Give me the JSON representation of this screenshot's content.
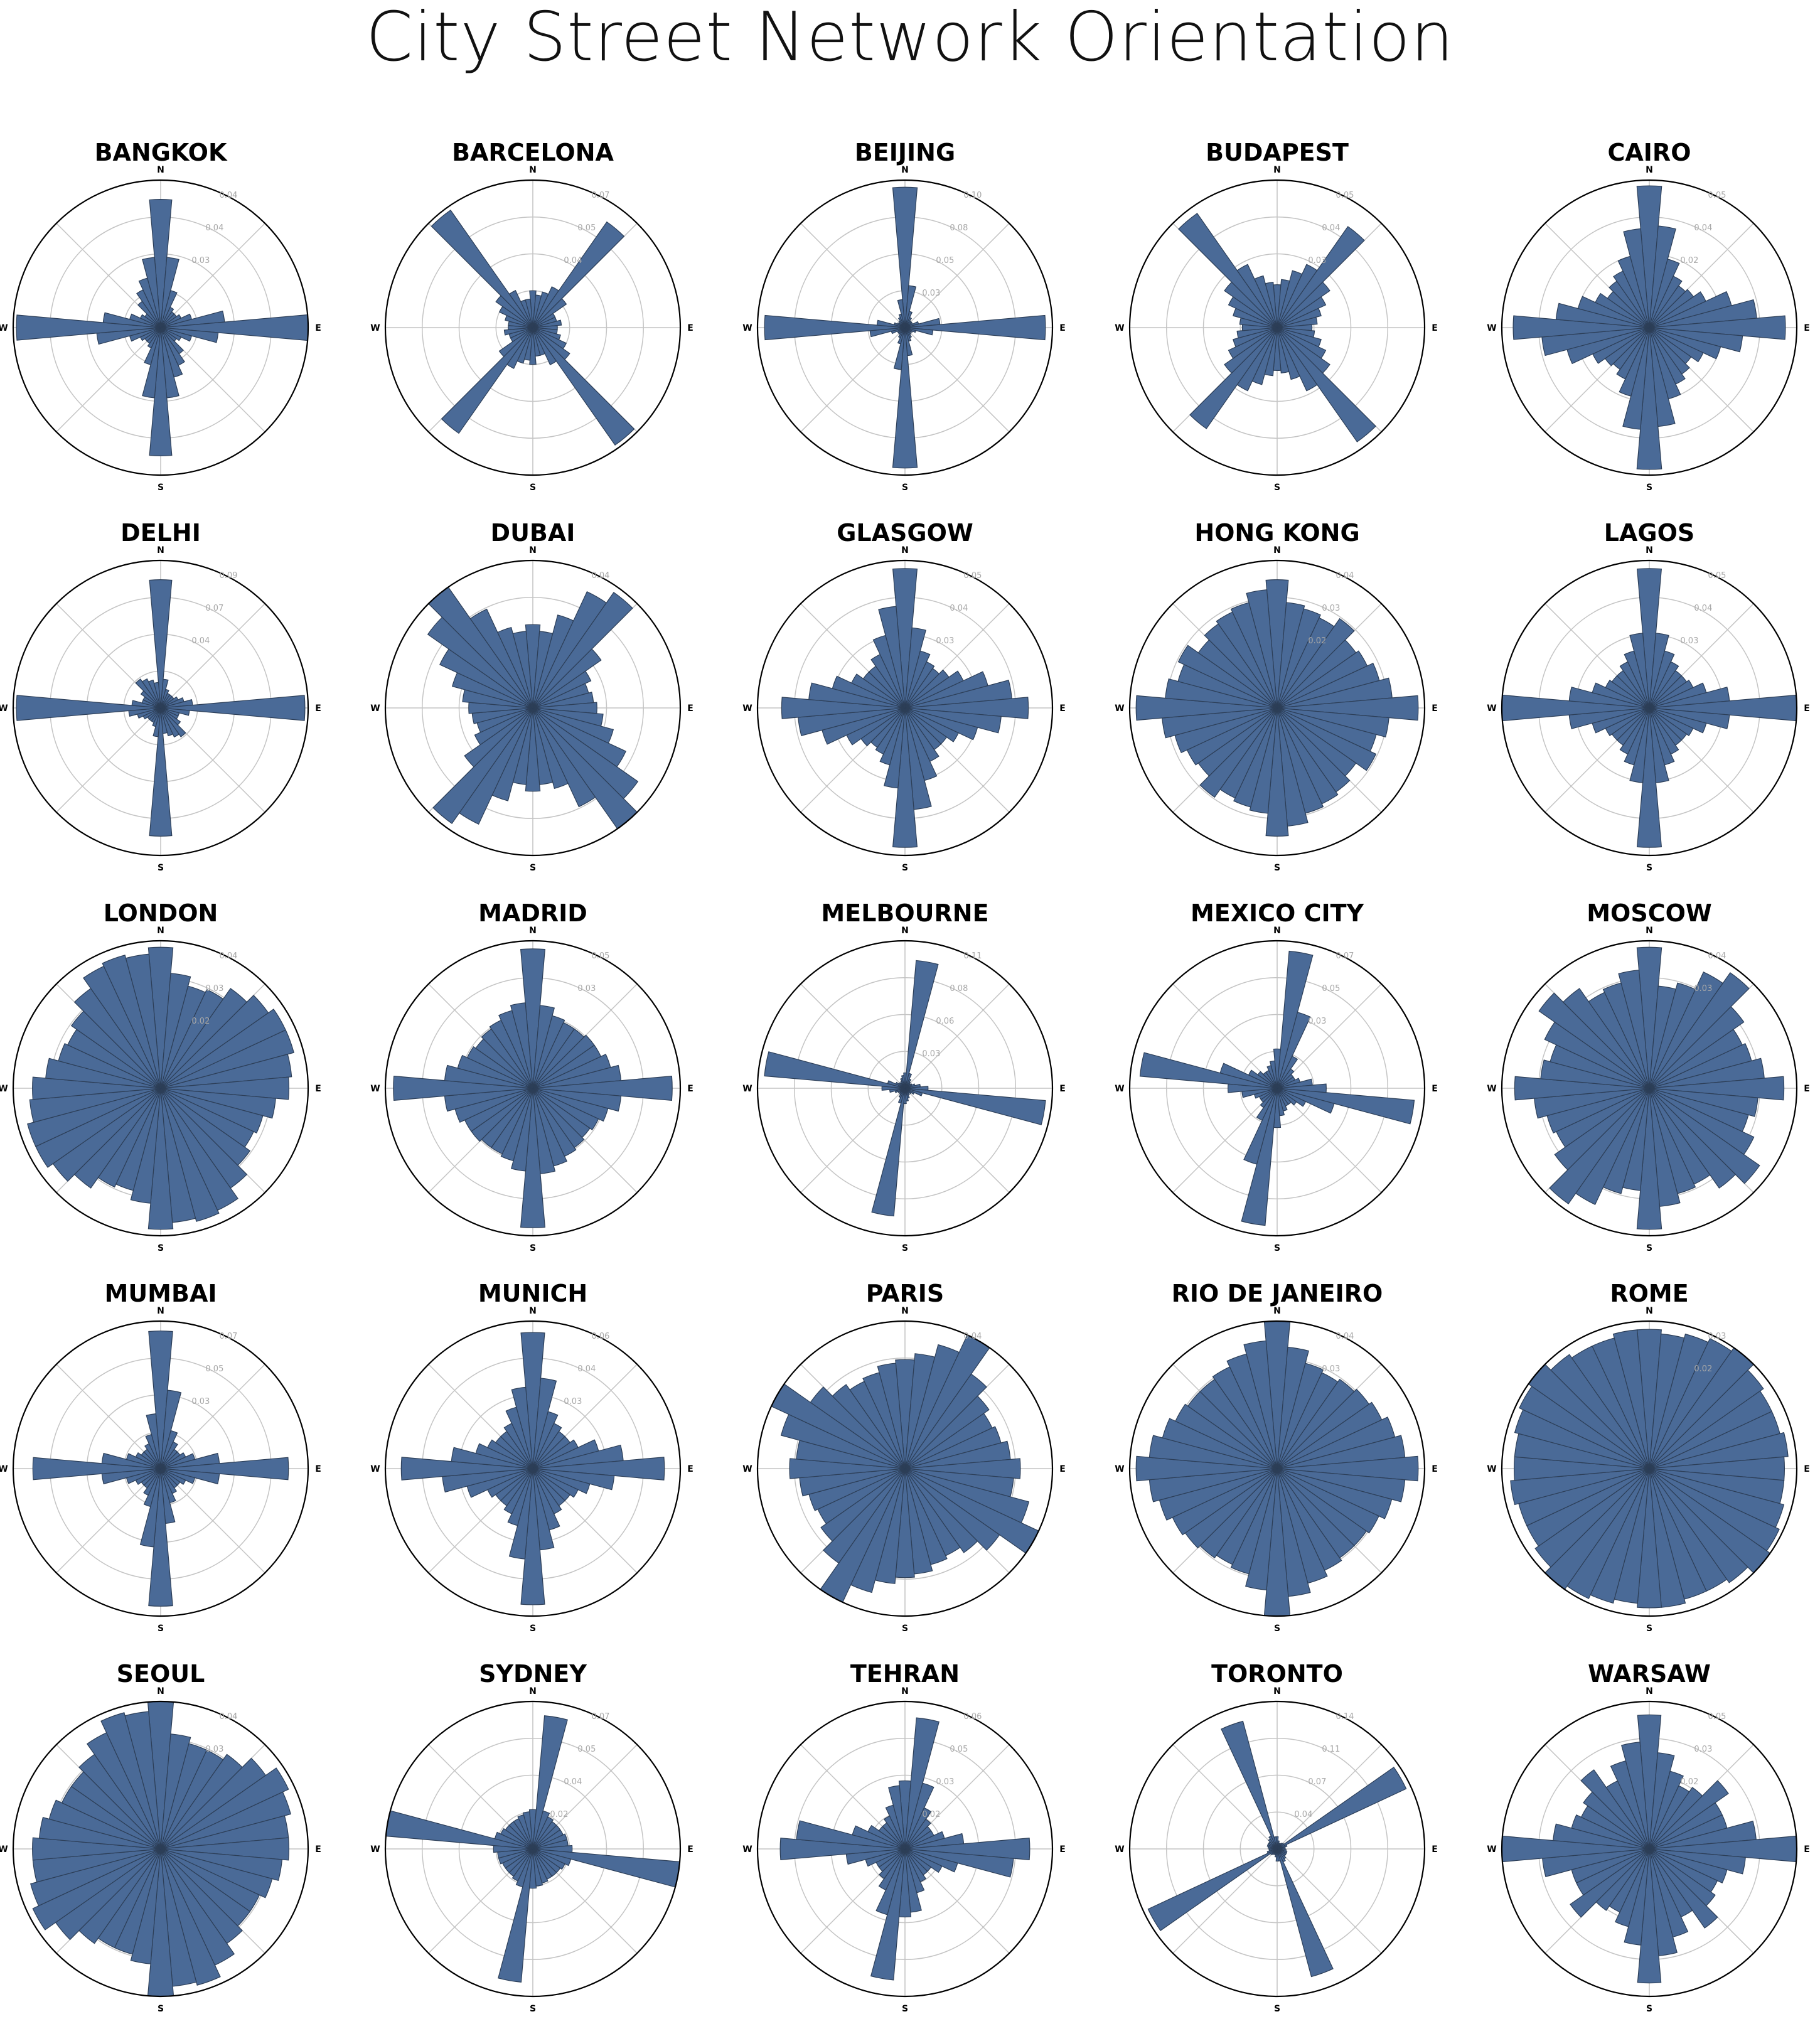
{
  "title": "City Street Network Orientation",
  "colors": {
    "bar_fill": "#4a6a97",
    "bar_edge": "#2c3e57",
    "grid": "#c4c4c4",
    "frame": "#000000"
  },
  "compass_labels": [
    "N",
    "E",
    "S",
    "W"
  ],
  "chart_data": [
    {
      "type": "polar-bar",
      "title": "BANGKOK",
      "bins": 36,
      "ticks": [
        "0.04",
        "0.04",
        "0.03"
      ],
      "ylim": [
        0,
        0.046
      ],
      "values": [
        0.04,
        0.022,
        0.012,
        0.007,
        0.006,
        0.006,
        0.007,
        0.01,
        0.02,
        0.046,
        0.018,
        0.01,
        0.007,
        0.006,
        0.01,
        0.013,
        0.016,
        0.022,
        0.04,
        0.022,
        0.012,
        0.007,
        0.006,
        0.006,
        0.007,
        0.01,
        0.02,
        0.045,
        0.018,
        0.01,
        0.007,
        0.006,
        0.01,
        0.013,
        0.016,
        0.022
      ]
    },
    {
      "type": "polar-bar",
      "title": "BARCELONA",
      "bins": 36,
      "ticks": [
        "0.07",
        "0.05",
        "0.04"
      ],
      "ylim": [
        0,
        0.072
      ],
      "values": [
        0.018,
        0.016,
        0.018,
        0.022,
        0.063,
        0.02,
        0.012,
        0.012,
        0.014,
        0.012,
        0.012,
        0.014,
        0.018,
        0.022,
        0.07,
        0.02,
        0.014,
        0.014,
        0.018,
        0.016,
        0.018,
        0.022,
        0.063,
        0.02,
        0.012,
        0.012,
        0.014,
        0.012,
        0.012,
        0.014,
        0.018,
        0.022,
        0.07,
        0.02,
        0.014,
        0.014
      ]
    },
    {
      "type": "polar-bar",
      "title": "BEIJING",
      "bins": 36,
      "ticks": [
        "0.10",
        "0.08",
        "0.05",
        "0.03"
      ],
      "ylim": [
        0,
        0.105
      ],
      "values": [
        0.1,
        0.03,
        0.012,
        0.008,
        0.006,
        0.006,
        0.006,
        0.01,
        0.025,
        0.1,
        0.02,
        0.008,
        0.006,
        0.005,
        0.006,
        0.008,
        0.01,
        0.02,
        0.1,
        0.03,
        0.012,
        0.008,
        0.006,
        0.006,
        0.006,
        0.01,
        0.025,
        0.1,
        0.02,
        0.008,
        0.006,
        0.005,
        0.006,
        0.008,
        0.01,
        0.02
      ]
    },
    {
      "type": "polar-bar",
      "title": "BUDAPEST",
      "bins": 36,
      "ticks": [
        "0.05",
        "0.04",
        "0.03"
      ],
      "ylim": [
        0,
        0.055
      ],
      "values": [
        0.016,
        0.018,
        0.022,
        0.026,
        0.046,
        0.024,
        0.02,
        0.017,
        0.015,
        0.013,
        0.014,
        0.017,
        0.02,
        0.024,
        0.052,
        0.026,
        0.02,
        0.017,
        0.016,
        0.018,
        0.022,
        0.026,
        0.046,
        0.024,
        0.02,
        0.017,
        0.015,
        0.013,
        0.014,
        0.017,
        0.02,
        0.024,
        0.052,
        0.026,
        0.02,
        0.017
      ]
    },
    {
      "type": "polar-bar",
      "title": "CAIRO",
      "bins": 36,
      "ticks": [
        "0.05",
        "0.04",
        "0.02"
      ],
      "ylim": [
        0,
        0.052
      ],
      "values": [
        0.05,
        0.036,
        0.025,
        0.02,
        0.018,
        0.019,
        0.022,
        0.03,
        0.038,
        0.048,
        0.033,
        0.026,
        0.021,
        0.018,
        0.02,
        0.022,
        0.026,
        0.035,
        0.05,
        0.036,
        0.025,
        0.02,
        0.018,
        0.019,
        0.022,
        0.03,
        0.038,
        0.048,
        0.033,
        0.026,
        0.021,
        0.018,
        0.02,
        0.022,
        0.026,
        0.035
      ]
    },
    {
      "type": "polar-bar",
      "title": "DELHI",
      "bins": 36,
      "ticks": [
        "0.09",
        "0.07",
        "0.04"
      ],
      "ylim": [
        0,
        0.092
      ],
      "values": [
        0.08,
        0.018,
        0.012,
        0.01,
        0.01,
        0.01,
        0.012,
        0.015,
        0.02,
        0.09,
        0.018,
        0.012,
        0.012,
        0.015,
        0.022,
        0.02,
        0.018,
        0.016,
        0.08,
        0.018,
        0.012,
        0.01,
        0.01,
        0.01,
        0.012,
        0.015,
        0.02,
        0.09,
        0.018,
        0.012,
        0.012,
        0.015,
        0.022,
        0.02,
        0.018,
        0.016
      ]
    },
    {
      "type": "polar-bar",
      "title": "DUBAI",
      "bins": 36,
      "ticks": [
        "0.04"
      ],
      "ylim": [
        0,
        0.046
      ],
      "values": [
        0.026,
        0.024,
        0.03,
        0.04,
        0.044,
        0.026,
        0.02,
        0.018,
        0.019,
        0.02,
        0.022,
        0.026,
        0.032,
        0.04,
        0.046,
        0.034,
        0.026,
        0.024,
        0.026,
        0.024,
        0.03,
        0.04,
        0.044,
        0.026,
        0.02,
        0.018,
        0.019,
        0.02,
        0.022,
        0.026,
        0.032,
        0.04,
        0.046,
        0.034,
        0.026,
        0.024
      ]
    },
    {
      "type": "polar-bar",
      "title": "GLASGOW",
      "bins": 36,
      "ticks": [
        "0.05",
        "0.04",
        "0.03"
      ],
      "ylim": [
        0,
        0.055
      ],
      "values": [
        0.052,
        0.03,
        0.022,
        0.019,
        0.018,
        0.02,
        0.024,
        0.032,
        0.04,
        0.046,
        0.036,
        0.028,
        0.022,
        0.019,
        0.019,
        0.022,
        0.028,
        0.038,
        0.052,
        0.03,
        0.022,
        0.019,
        0.018,
        0.02,
        0.024,
        0.032,
        0.04,
        0.046,
        0.036,
        0.028,
        0.022,
        0.019,
        0.019,
        0.022,
        0.028,
        0.038
      ]
    },
    {
      "type": "polar-bar",
      "title": "HONG KONG",
      "bins": 36,
      "ticks": [
        "0.04",
        "0.03",
        "0.02"
      ],
      "ylim": [
        0,
        0.046
      ],
      "values": [
        0.04,
        0.033,
        0.032,
        0.031,
        0.034,
        0.03,
        0.031,
        0.033,
        0.036,
        0.044,
        0.035,
        0.032,
        0.034,
        0.03,
        0.032,
        0.033,
        0.034,
        0.037,
        0.04,
        0.033,
        0.032,
        0.031,
        0.034,
        0.03,
        0.031,
        0.033,
        0.036,
        0.044,
        0.035,
        0.032,
        0.034,
        0.03,
        0.032,
        0.033,
        0.034,
        0.037
      ]
    },
    {
      "type": "polar-bar",
      "title": "LAGOS",
      "bins": 36,
      "ticks": [
        "0.05",
        "0.04",
        "0.03"
      ],
      "ylim": [
        0,
        0.055
      ],
      "values": [
        0.052,
        0.028,
        0.022,
        0.019,
        0.017,
        0.017,
        0.018,
        0.022,
        0.03,
        0.055,
        0.03,
        0.022,
        0.018,
        0.017,
        0.017,
        0.019,
        0.022,
        0.028,
        0.052,
        0.028,
        0.022,
        0.019,
        0.017,
        0.017,
        0.018,
        0.022,
        0.03,
        0.055,
        0.03,
        0.022,
        0.018,
        0.017,
        0.017,
        0.019,
        0.022,
        0.028
      ]
    },
    {
      "type": "polar-bar",
      "title": "LONDON",
      "bins": 36,
      "ticks": [
        "0.04",
        "0.03",
        "0.02"
      ],
      "ylim": [
        0,
        0.046
      ],
      "values": [
        0.044,
        0.036,
        0.033,
        0.034,
        0.038,
        0.041,
        0.043,
        0.043,
        0.041,
        0.04,
        0.036,
        0.033,
        0.032,
        0.034,
        0.038,
        0.042,
        0.043,
        0.042,
        0.044,
        0.036,
        0.033,
        0.034,
        0.038,
        0.041,
        0.043,
        0.043,
        0.041,
        0.04,
        0.036,
        0.033,
        0.032,
        0.034,
        0.038,
        0.042,
        0.043,
        0.042
      ]
    },
    {
      "type": "polar-bar",
      "title": "MADRID",
      "bins": 36,
      "ticks": [
        "0.05",
        "0.03"
      ],
      "ylim": [
        0,
        0.055
      ],
      "values": [
        0.052,
        0.031,
        0.028,
        0.027,
        0.027,
        0.028,
        0.028,
        0.03,
        0.033,
        0.052,
        0.033,
        0.029,
        0.027,
        0.026,
        0.027,
        0.028,
        0.03,
        0.032,
        0.052,
        0.031,
        0.028,
        0.027,
        0.027,
        0.028,
        0.028,
        0.03,
        0.033,
        0.052,
        0.033,
        0.029,
        0.027,
        0.026,
        0.027,
        0.028,
        0.03,
        0.032
      ]
    },
    {
      "type": "polar-bar",
      "title": "MELBOURNE",
      "bins": 36,
      "ticks": [
        "0.11",
        "0.08",
        "0.06",
        "0.03"
      ],
      "ylim": [
        0,
        0.115
      ],
      "values": [
        0.012,
        0.1,
        0.012,
        0.008,
        0.006,
        0.005,
        0.006,
        0.008,
        0.012,
        0.018,
        0.11,
        0.014,
        0.008,
        0.006,
        0.005,
        0.006,
        0.008,
        0.01,
        0.012,
        0.1,
        0.012,
        0.008,
        0.006,
        0.005,
        0.006,
        0.008,
        0.012,
        0.018,
        0.11,
        0.014,
        0.008,
        0.006,
        0.005,
        0.006,
        0.008,
        0.01
      ]
    },
    {
      "type": "polar-bar",
      "title": "MEXICO CITY",
      "bins": 36,
      "ticks": [
        "0.07",
        "0.05",
        "0.03"
      ],
      "ylim": [
        0,
        0.075
      ],
      "values": [
        0.02,
        0.07,
        0.04,
        0.018,
        0.012,
        0.01,
        0.01,
        0.012,
        0.018,
        0.025,
        0.07,
        0.03,
        0.016,
        0.012,
        0.01,
        0.01,
        0.012,
        0.014,
        0.02,
        0.07,
        0.04,
        0.018,
        0.012,
        0.01,
        0.01,
        0.012,
        0.018,
        0.025,
        0.07,
        0.03,
        0.016,
        0.012,
        0.01,
        0.01,
        0.012,
        0.014
      ]
    },
    {
      "type": "polar-bar",
      "title": "MOSCOW",
      "bins": 36,
      "ticks": [
        "0.04",
        "0.03"
      ],
      "ylim": [
        0,
        0.046
      ],
      "values": [
        0.044,
        0.032,
        0.034,
        0.04,
        0.044,
        0.036,
        0.032,
        0.033,
        0.036,
        0.042,
        0.034,
        0.032,
        0.036,
        0.042,
        0.038,
        0.033,
        0.034,
        0.037,
        0.044,
        0.032,
        0.034,
        0.04,
        0.044,
        0.036,
        0.032,
        0.033,
        0.036,
        0.042,
        0.034,
        0.032,
        0.036,
        0.042,
        0.038,
        0.033,
        0.034,
        0.037
      ]
    },
    {
      "type": "polar-bar",
      "title": "MUMBAI",
      "bins": 36,
      "ticks": [
        "0.07",
        "0.05",
        "0.03"
      ],
      "ylim": [
        0,
        0.075
      ],
      "values": [
        0.07,
        0.04,
        0.02,
        0.015,
        0.012,
        0.012,
        0.014,
        0.018,
        0.03,
        0.065,
        0.03,
        0.018,
        0.014,
        0.012,
        0.012,
        0.014,
        0.018,
        0.028,
        0.07,
        0.04,
        0.02,
        0.015,
        0.012,
        0.012,
        0.014,
        0.018,
        0.03,
        0.065,
        0.03,
        0.018,
        0.014,
        0.012,
        0.012,
        0.014,
        0.018,
        0.028
      ]
    },
    {
      "type": "polar-bar",
      "title": "MUNICH",
      "bins": 36,
      "ticks": [
        "0.06",
        "0.04",
        "0.03"
      ],
      "ylim": [
        0,
        0.065
      ],
      "values": [
        0.06,
        0.04,
        0.026,
        0.022,
        0.02,
        0.02,
        0.022,
        0.03,
        0.04,
        0.058,
        0.036,
        0.026,
        0.022,
        0.02,
        0.02,
        0.022,
        0.028,
        0.036,
        0.06,
        0.04,
        0.026,
        0.022,
        0.02,
        0.02,
        0.022,
        0.03,
        0.04,
        0.058,
        0.036,
        0.026,
        0.022,
        0.02,
        0.02,
        0.022,
        0.028,
        0.036
      ]
    },
    {
      "type": "polar-bar",
      "title": "PARIS",
      "bins": 36,
      "ticks": [
        "0.04"
      ],
      "ylim": [
        0,
        0.046
      ],
      "values": [
        0.034,
        0.036,
        0.04,
        0.046,
        0.036,
        0.032,
        0.03,
        0.031,
        0.033,
        0.036,
        0.034,
        0.04,
        0.046,
        0.036,
        0.032,
        0.03,
        0.031,
        0.033,
        0.034,
        0.036,
        0.04,
        0.046,
        0.036,
        0.032,
        0.03,
        0.031,
        0.033,
        0.036,
        0.034,
        0.04,
        0.046,
        0.036,
        0.032,
        0.03,
        0.031,
        0.033
      ]
    },
    {
      "type": "polar-bar",
      "title": "RIO DE JANEIRO",
      "bins": 36,
      "ticks": [
        "0.04",
        "0.03"
      ],
      "ylim": [
        0,
        0.046
      ],
      "values": [
        0.046,
        0.038,
        0.034,
        0.033,
        0.034,
        0.035,
        0.036,
        0.038,
        0.04,
        0.044,
        0.04,
        0.037,
        0.035,
        0.034,
        0.034,
        0.035,
        0.037,
        0.04,
        0.046,
        0.038,
        0.034,
        0.033,
        0.034,
        0.035,
        0.036,
        0.038,
        0.04,
        0.044,
        0.04,
        0.037,
        0.035,
        0.034,
        0.034,
        0.035,
        0.037,
        0.04
      ]
    },
    {
      "type": "polar-bar",
      "title": "ROME",
      "bins": 36,
      "ticks": [
        "0.03",
        "0.02"
      ],
      "ylim": [
        0,
        0.036
      ],
      "values": [
        0.034,
        0.033,
        0.034,
        0.035,
        0.036,
        0.034,
        0.033,
        0.033,
        0.034,
        0.033,
        0.033,
        0.034,
        0.035,
        0.036,
        0.034,
        0.033,
        0.033,
        0.034,
        0.034,
        0.033,
        0.034,
        0.035,
        0.036,
        0.034,
        0.033,
        0.033,
        0.034,
        0.033,
        0.033,
        0.034,
        0.035,
        0.036,
        0.034,
        0.033,
        0.033,
        0.034
      ]
    },
    {
      "type": "polar-bar",
      "title": "SEOUL",
      "bins": 36,
      "ticks": [
        "0.04",
        "0.03"
      ],
      "ylim": [
        0,
        0.046
      ],
      "values": [
        0.046,
        0.036,
        0.034,
        0.034,
        0.036,
        0.04,
        0.044,
        0.042,
        0.04,
        0.04,
        0.038,
        0.036,
        0.034,
        0.034,
        0.036,
        0.04,
        0.044,
        0.043,
        0.046,
        0.036,
        0.034,
        0.034,
        0.036,
        0.04,
        0.044,
        0.042,
        0.04,
        0.04,
        0.038,
        0.036,
        0.034,
        0.034,
        0.036,
        0.04,
        0.044,
        0.043
      ]
    },
    {
      "type": "polar-bar",
      "title": "SYDNEY",
      "bins": 36,
      "ticks": [
        "0.07",
        "0.05",
        "0.04",
        "0.02"
      ],
      "ylim": [
        0,
        0.075
      ],
      "values": [
        0.02,
        0.068,
        0.02,
        0.018,
        0.017,
        0.017,
        0.017,
        0.018,
        0.018,
        0.02,
        0.075,
        0.02,
        0.018,
        0.017,
        0.017,
        0.017,
        0.018,
        0.019,
        0.02,
        0.068,
        0.02,
        0.018,
        0.017,
        0.017,
        0.017,
        0.018,
        0.018,
        0.02,
        0.075,
        0.02,
        0.018,
        0.017,
        0.017,
        0.017,
        0.018,
        0.019
      ]
    },
    {
      "type": "polar-bar",
      "title": "TEHRAN",
      "bins": 36,
      "ticks": [
        "0.06",
        "0.05",
        "0.03",
        "0.02"
      ],
      "ylim": [
        0,
        0.065
      ],
      "values": [
        0.03,
        0.058,
        0.03,
        0.02,
        0.016,
        0.014,
        0.014,
        0.018,
        0.026,
        0.055,
        0.048,
        0.024,
        0.018,
        0.014,
        0.014,
        0.016,
        0.02,
        0.028,
        0.03,
        0.058,
        0.03,
        0.02,
        0.016,
        0.014,
        0.014,
        0.018,
        0.026,
        0.055,
        0.048,
        0.024,
        0.018,
        0.014,
        0.014,
        0.016,
        0.02,
        0.028
      ]
    },
    {
      "type": "polar-bar",
      "title": "TORONTO",
      "bins": 36,
      "ticks": [
        "0.14",
        "0.11",
        "0.07",
        "0.04"
      ],
      "ylim": [
        0,
        0.145
      ],
      "values": [
        0.012,
        0.008,
        0.006,
        0.006,
        0.007,
        0.008,
        0.14,
        0.01,
        0.008,
        0.008,
        0.009,
        0.01,
        0.01,
        0.01,
        0.012,
        0.014,
        0.13,
        0.012,
        0.012,
        0.008,
        0.006,
        0.006,
        0.007,
        0.008,
        0.14,
        0.01,
        0.008,
        0.008,
        0.009,
        0.01,
        0.01,
        0.01,
        0.012,
        0.014,
        0.13,
        0.012
      ]
    },
    {
      "type": "polar-bar",
      "title": "WARSAW",
      "bins": 36,
      "ticks": [
        "0.05",
        "0.03",
        "0.02"
      ],
      "ylim": [
        0,
        0.055
      ],
      "values": [
        0.05,
        0.036,
        0.03,
        0.026,
        0.028,
        0.036,
        0.03,
        0.03,
        0.04,
        0.055,
        0.036,
        0.03,
        0.028,
        0.03,
        0.036,
        0.028,
        0.034,
        0.04,
        0.05,
        0.036,
        0.03,
        0.026,
        0.028,
        0.036,
        0.03,
        0.03,
        0.04,
        0.055,
        0.036,
        0.03,
        0.028,
        0.03,
        0.036,
        0.028,
        0.034,
        0.04
      ]
    }
  ]
}
